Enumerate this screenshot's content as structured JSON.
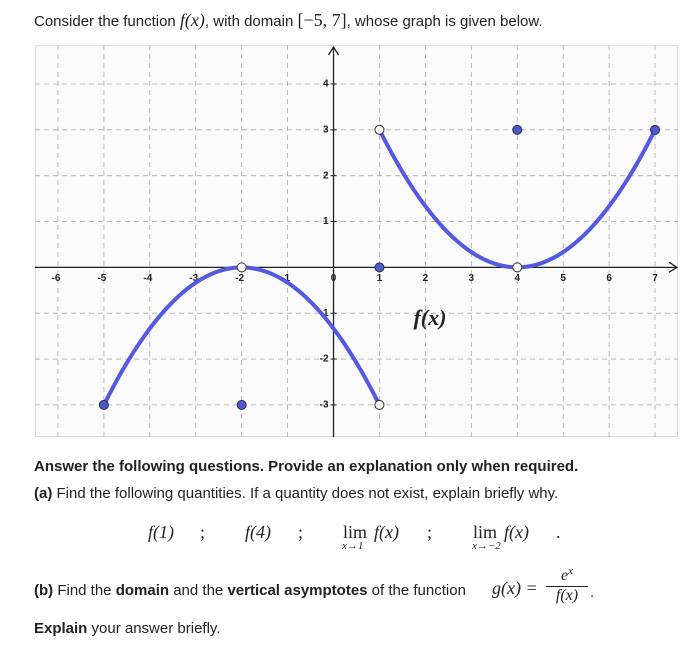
{
  "intro": [
    "Consider the function ",
    "f(x)",
    ", with domain ",
    "[−5, 7]",
    ", whose graph is given below."
  ],
  "graph": {
    "xlim": [
      -6.5,
      7.5
    ],
    "ylim": [
      -3.7,
      4.85
    ],
    "xticks": [
      -6,
      -5,
      -4,
      -3,
      -2,
      -1,
      0,
      1,
      2,
      3,
      4,
      5,
      6,
      7
    ],
    "yticks": [
      -3,
      -2,
      -1,
      1,
      2,
      3,
      4
    ],
    "label": "f(x)",
    "grid": true,
    "curve_color": "#5359e0",
    "point_color": "#4a57d6",
    "curves": [
      {
        "x": [
          -5,
          1
        ],
        "y": [
          -3,
          -3
        ],
        "vertex": [
          -2,
          0
        ]
      },
      {
        "x": [
          1,
          7
        ],
        "y": [
          3,
          3
        ],
        "vertex": [
          4,
          0
        ]
      }
    ],
    "points": [
      {
        "x": -5,
        "y": -3,
        "open": false
      },
      {
        "x": -2,
        "y": 0,
        "open": true
      },
      {
        "x": -2,
        "y": -3,
        "open": false
      },
      {
        "x": 1,
        "y": 0,
        "open": false
      },
      {
        "x": 1,
        "y": 3,
        "open": true
      },
      {
        "x": 1,
        "y": -3,
        "open": true
      },
      {
        "x": 4,
        "y": 3,
        "open": false
      },
      {
        "x": 4,
        "y": 0,
        "open": true
      },
      {
        "x": 7,
        "y": 3,
        "open": false
      }
    ]
  },
  "instructions": "Answer the following questions. Provide an explanation only when required.",
  "part_a": {
    "tag": "(a)",
    "text": " Find the following quantities. If a quantity does not exist, explain briefly why."
  },
  "quantities": [
    {
      "main": "f(1)"
    },
    {
      "sep": ";"
    },
    {
      "main": "f(4)"
    },
    {
      "sep": ";"
    },
    {
      "lim": "lim",
      "sub": "x→1",
      "main": "f(x)"
    },
    {
      "sep": ";"
    },
    {
      "lim": "lim",
      "sub": "x→−2",
      "main": "f(x)"
    },
    {
      "sep": "."
    }
  ],
  "part_b": {
    "tag": "(b)",
    "t1": " Find the ",
    "b1": "domain",
    "t2": " and the ",
    "b2": "vertical asymptotes",
    "t3": " of the function ",
    "g": "g(x) =",
    "num": "e",
    "sup": "x",
    "den": "f(x)",
    "end": "."
  },
  "explain": {
    "bold": "Explain",
    "text": " your answer briefly."
  }
}
